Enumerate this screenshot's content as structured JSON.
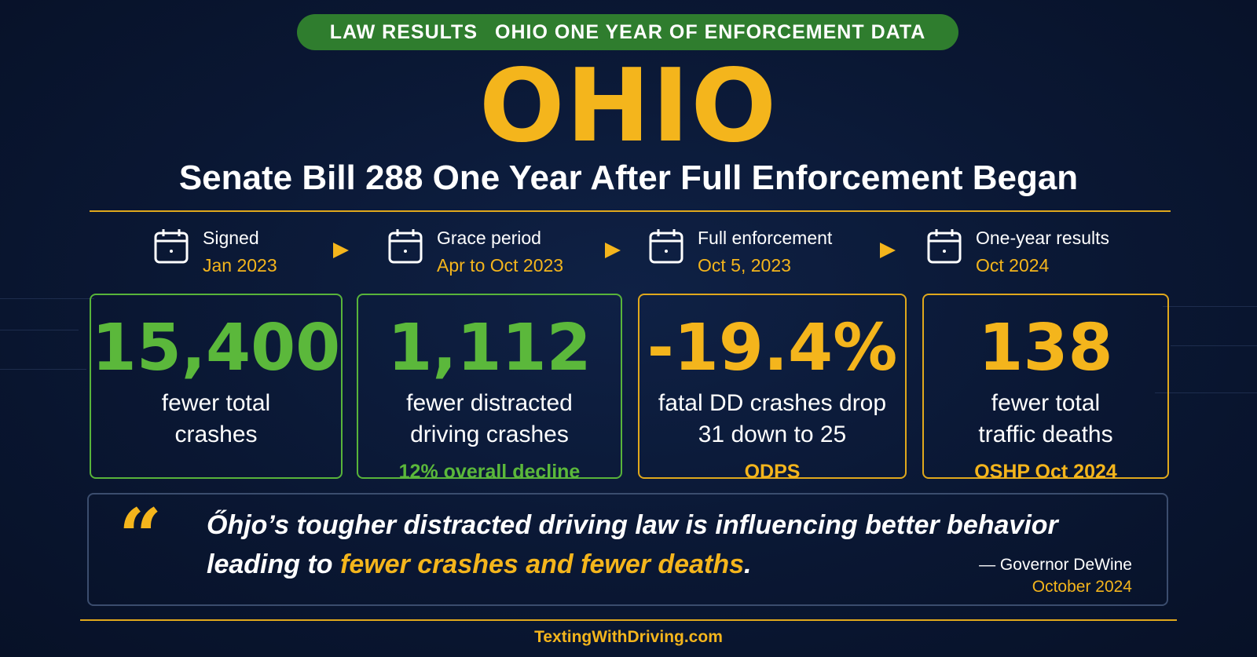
{
  "header": {
    "badge_left": "LAW RESULTS",
    "badge_right": "OHIO ONE YEAR OF ENFORCEMENT DATA",
    "title": "OHIO",
    "subtitle": "Senate Bill 288 One Year After Full Enforcement Began"
  },
  "timeline": [
    {
      "label": "Signed",
      "date": "Jan 2023",
      "icon": "calendar-icon"
    },
    {
      "label": "Grace period",
      "date": "Apr to Oct 2023",
      "icon": "calendar-icon"
    },
    {
      "label": "Full enforcement",
      "date": "Oct 5, 2023",
      "icon": "calendar-icon"
    },
    {
      "label": "One-year results",
      "date": "Oct 2024",
      "icon": "calendar-icon"
    }
  ],
  "stats": [
    {
      "value": "15,400",
      "line1": "fewer total",
      "line2": "crashes",
      "note": ""
    },
    {
      "value": "1,112",
      "line1": "fewer distracted",
      "line2": "driving crashes",
      "note": "12% overall decline"
    },
    {
      "value": "-19.4%",
      "line1": "fatal DD crashes drop",
      "line2": "31 down to 25",
      "note": "ODPS"
    },
    {
      "value": "138",
      "line1": "fewer total",
      "line2": "traffic deaths",
      "note": "OSHP Oct 2024"
    }
  ],
  "quote": {
    "mark": "“",
    "line1": "Őhjo’s tougher distracted driving law is influencing better behavior",
    "line2_prefix": "leading to ",
    "line2_highlight": "fewer crashes and fewer deaths",
    "line2_suffix": ".",
    "author": "— Governor DeWine",
    "date": "October 2024"
  },
  "footer": {
    "site": "TextingWithDriving.com"
  },
  "colors": {
    "background": "#0a1733",
    "accent_gold": "#f4b51c",
    "accent_green": "#5bb83b",
    "badge_green": "#2f7d2e"
  }
}
